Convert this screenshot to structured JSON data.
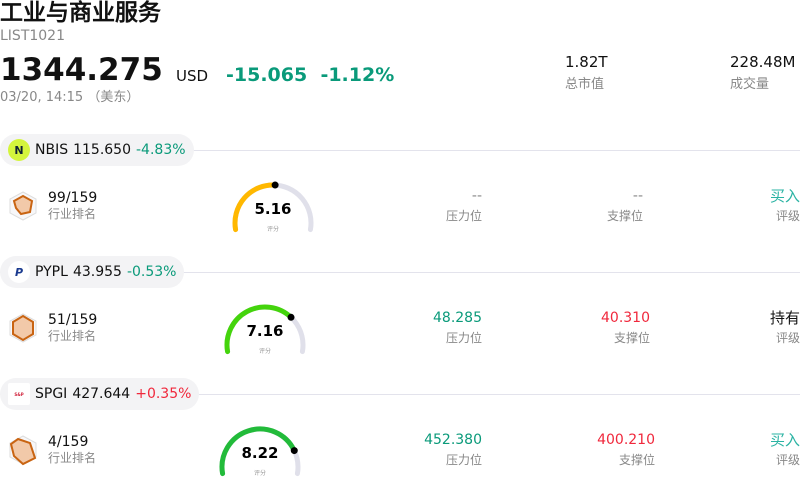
{
  "header": {
    "title": "工业与商业服务",
    "code": "LIST1021",
    "price": "1344.275",
    "currency": "USD",
    "change": "-15.065",
    "change_pct": "-1.12%",
    "time": "03/20, 14:15 （美东）",
    "market_cap": {
      "value": "1.82T",
      "label": "总市值"
    },
    "volume": {
      "value": "228.48M",
      "label": "成交量"
    }
  },
  "labels": {
    "rank": "行业排名",
    "score": "评分",
    "pressure": "压力位",
    "support": "支撑位",
    "rating": "评级"
  },
  "stocks": [
    {
      "ticker": "NBIS",
      "price": "115.650",
      "change_pct": "-4.83%",
      "direction": "down",
      "logo": "N",
      "logo_color": "#d4f53c",
      "rank": "99/159",
      "score": 5.16,
      "score_text": "5.16",
      "gauge_color": "#ffb800",
      "pressure": "--",
      "support": "--",
      "rating": "买入",
      "rating_color": "#2ab3a3"
    },
    {
      "ticker": "PYPL",
      "price": "43.955",
      "change_pct": "-0.53%",
      "direction": "down",
      "logo": "P",
      "logo_color": "#ffffff",
      "rank": "51/159",
      "score": 7.16,
      "score_text": "7.16",
      "gauge_color": "#44d40c",
      "pressure": "48.285",
      "support": "40.310",
      "rating": "持有",
      "rating_color": "#111111"
    },
    {
      "ticker": "SPGI",
      "price": "427.644",
      "change_pct": "+0.35%",
      "direction": "up",
      "logo": "S&P Global",
      "logo_color": "#ffffff",
      "rank": "4/159",
      "score": 8.22,
      "score_text": "8.22",
      "gauge_color": "#22bb3a",
      "pressure": "452.380",
      "support": "400.210",
      "rating": "买入",
      "rating_color": "#2ab3a3"
    }
  ]
}
